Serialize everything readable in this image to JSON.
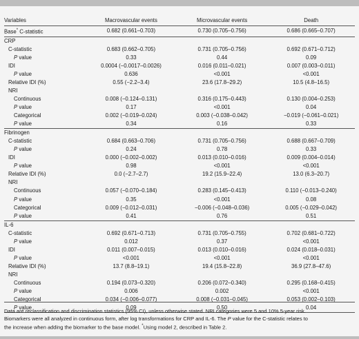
{
  "table": {
    "header": [
      "Variables",
      "Macrovascular events",
      "Microvascular events",
      "Death"
    ],
    "base": {
      "label_pre": "Base",
      "label_sup": "*",
      "label_post": " C-statistic",
      "values": [
        "0.682 (0.661–0.703)",
        "0.730 (0.705–0.756)",
        "0.686 (0.665–0.707)"
      ]
    },
    "sections": [
      {
        "title": "CRP",
        "rows": [
          {
            "label": "C-statistic",
            "kind": "ind1",
            "values": [
              "0.683 (0.662–0.705)",
              "0.731 (0.705–0.756)",
              "0.692 (0.671–0.712)"
            ]
          },
          {
            "label_i": "P",
            "label": " value",
            "kind": "p",
            "values": [
              "0.33",
              "0.44",
              "0.09"
            ]
          },
          {
            "label": "IDI",
            "kind": "ind1",
            "values": [
              "0.0004 (−0.0017–0.0026)",
              "0.016 (0.011–0.021)",
              "0.007 (0.003–0.011)"
            ]
          },
          {
            "label_i": "P",
            "label": " value",
            "kind": "p",
            "values": [
              "0.636",
              "<0.001",
              "<0.001"
            ]
          },
          {
            "label": "Relative IDI (%)",
            "kind": "ind1",
            "values": [
              "0.55 (−2.2–3.4)",
              "23.6 (17.8–29.2)",
              "10.5 (4.8–16.5)"
            ]
          },
          {
            "label": "NRI",
            "kind": "ind1",
            "values": [
              "",
              "",
              ""
            ]
          },
          {
            "label": "Continuous",
            "kind": "ind2",
            "values": [
              "0.008 (−0.124–0.131)",
              "0.316 (0.175–0.443)",
              "0.130 (0.004–0.253)"
            ]
          },
          {
            "label_i": "P",
            "label": " value",
            "kind": "p",
            "values": [
              "0.17",
              "<0.001",
              "0.04"
            ]
          },
          {
            "label": "Categorical",
            "kind": "ind2",
            "values": [
              "0.002 (−0.019–0.024)",
              "0.003 (−0.038–0.042)",
              "−0.019 (−0.061–0.021)"
            ]
          },
          {
            "label_i": "P",
            "label": " value",
            "kind": "p",
            "values": [
              "0.34",
              "0.16",
              "0.33"
            ]
          }
        ]
      },
      {
        "title": "Fibrinogen",
        "rows": [
          {
            "label": "C-statistic",
            "kind": "ind1",
            "values": [
              "0.684 (0.663–0.706)",
              "0.731 (0.705–0.756)",
              "0.688 (0.667–0.709)"
            ]
          },
          {
            "label_i": "P",
            "label": " value",
            "kind": "p",
            "values": [
              "0.24",
              "0.78",
              "0.33"
            ]
          },
          {
            "label": "IDI",
            "kind": "ind1",
            "values": [
              "0.000 (−0.002–0.002)",
              "0.013 (0.010–0.016)",
              "0.009 (0.004–0.014)"
            ]
          },
          {
            "label_i": "P",
            "label": " value",
            "kind": "p",
            "values": [
              "0.98",
              "<0.001",
              "<0.001"
            ]
          },
          {
            "label": "Relative IDI (%)",
            "kind": "ind1",
            "values": [
              "0.0 (−2.7–2.7)",
              "19.2 (15.9–22.4)",
              "13.0 (6.3–20.7)"
            ]
          },
          {
            "label": "NRI",
            "kind": "ind1",
            "values": [
              "",
              "",
              ""
            ]
          },
          {
            "label": "Continuous",
            "kind": "ind2",
            "values": [
              "0.057 (−0.070–0.184)",
              "0.283 (0.145–0.413)",
              "0.110 (−0.013–0.240)"
            ]
          },
          {
            "label_i": "P",
            "label": " value",
            "kind": "p",
            "values": [
              "0.35",
              "<0.001",
              "0.08"
            ]
          },
          {
            "label": "Categorical",
            "kind": "ind2",
            "values": [
              "0.009 (−0.012–0.031)",
              "−0.006 (−0.048–0.036)",
              "0.005 (−0.029–0.042)"
            ]
          },
          {
            "label_i": "P",
            "label": " value",
            "kind": "p",
            "values": [
              "0.41",
              "0.76",
              "0.51"
            ]
          }
        ]
      },
      {
        "title": "IL-6",
        "rows": [
          {
            "label": "C-statistic",
            "kind": "ind1",
            "values": [
              "0.692 (0.671–0.713)",
              "0.731 (0.705–0.755)",
              "0.702 (0.681–0.722)"
            ]
          },
          {
            "label_i": "P",
            "label": " value",
            "kind": "p",
            "values": [
              "0.012",
              "0.37",
              "<0.001"
            ]
          },
          {
            "label": "IDI",
            "kind": "ind1",
            "values": [
              "0.011 (0.007–0.015)",
              "0.013 (0.010–0.016)",
              "0.024 (0.018–0.031)"
            ]
          },
          {
            "label_i": "P",
            "label": " value",
            "kind": "p",
            "values": [
              "<0.001",
              "<0.001",
              "<0.001"
            ]
          },
          {
            "label": "Relative IDI (%)",
            "kind": "ind1",
            "values": [
              "13.7 (8.8–19.1)",
              "19.4 (15.8–22.8)",
              "36.9 (27.8–47.6)"
            ]
          },
          {
            "label": "NRI",
            "kind": "ind1",
            "values": [
              "",
              "",
              ""
            ]
          },
          {
            "label": "Continuous",
            "kind": "ind2",
            "values": [
              "0.194 (0.073–0.320)",
              "0.206 (0.072–0.340)",
              "0.295 (0.168–0.415)"
            ]
          },
          {
            "label_i": "P",
            "label": " value",
            "kind": "p",
            "values": [
              "0.006",
              "0.002",
              "<0.001"
            ]
          },
          {
            "label": "Categorical",
            "kind": "ind2",
            "values": [
              "0.034 (−0.006–0.077)",
              "0.008 (−0.031–0.045)",
              "0.053 (0.002–0.103)"
            ]
          },
          {
            "label_i": "P",
            "label": " value",
            "kind": "p",
            "values": [
              "0.09",
              "0.50",
              "0.04"
            ]
          }
        ]
      }
    ]
  },
  "footnote": {
    "line1": "Data are reclassification and discrimination statistics (95% CI), unless otherwise stated. NRI categories were 5 and 10% 5-year risk.",
    "line2": "Biomarkers were all analyzed in continuous form, after log transformations for CRP and IL-6. The ",
    "line2_i": "P",
    "line2b": " value for the C-statistic relates to",
    "line3": "the increase when adding the biomarker to the base model. ",
    "line3_sup": "*",
    "line3b": "Using model 2, described in Table 2."
  }
}
